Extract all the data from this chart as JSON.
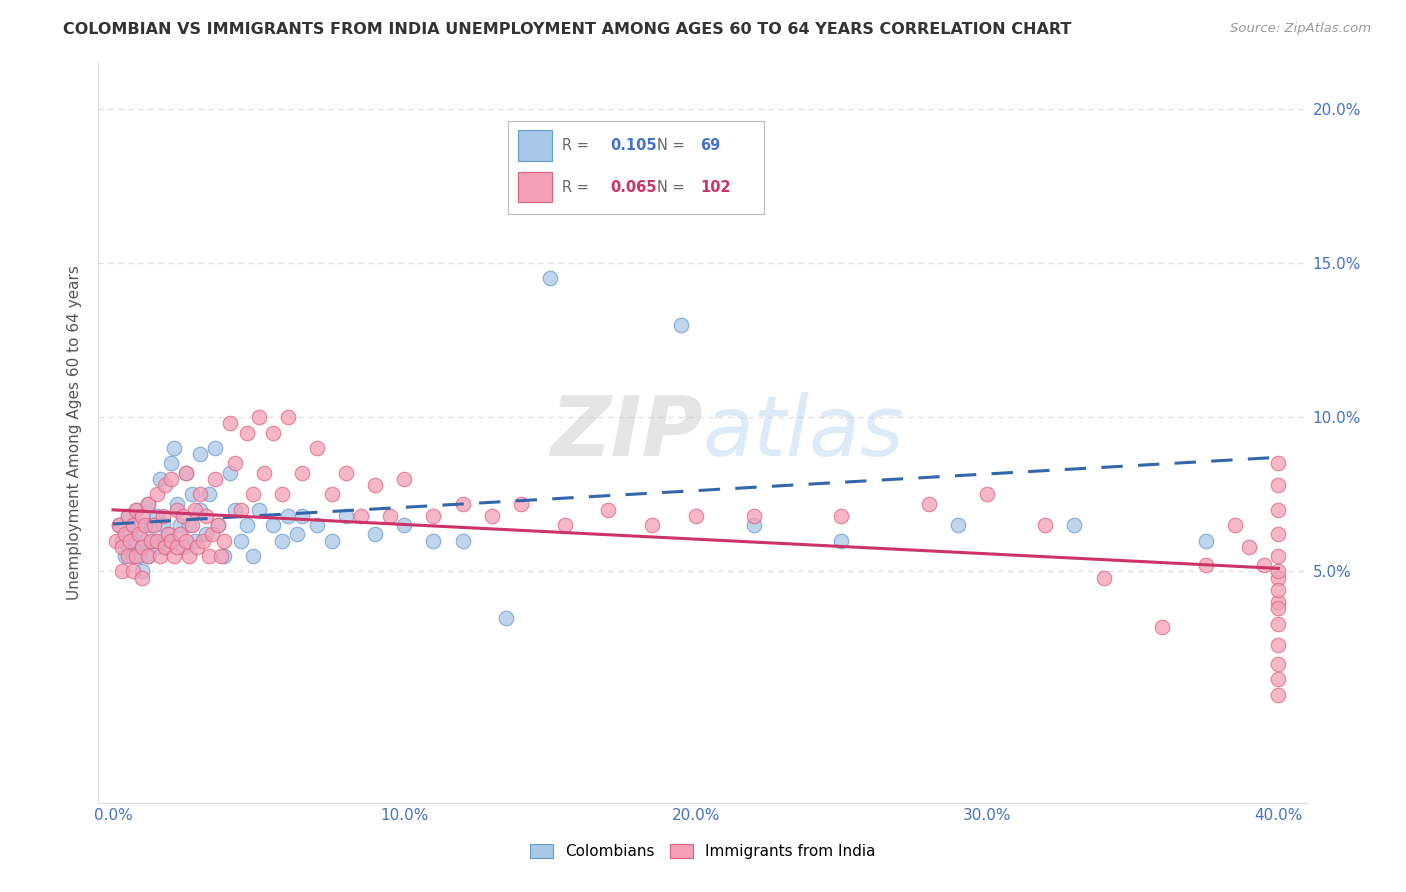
{
  "title": "COLOMBIAN VS IMMIGRANTS FROM INDIA UNEMPLOYMENT AMONG AGES 60 TO 64 YEARS CORRELATION CHART",
  "source": "Source: ZipAtlas.com",
  "ylabel": "Unemployment Among Ages 60 to 64 years",
  "colombian_color": "#a8c8e8",
  "colombia_edge_color": "#6699cc",
  "india_color": "#f4a0b8",
  "india_edge_color": "#e06080",
  "trend_colombian_color": "#3366aa",
  "trend_india_color": "#cc3366",
  "legend_R_colombian": "0.105",
  "legend_N_colombian": "69",
  "legend_R_india": "0.065",
  "legend_N_india": "102",
  "watermark": "ZIPatlas",
  "x_min": 0.0,
  "x_max": 0.4,
  "y_min": -0.025,
  "y_max": 0.215,
  "yticks": [
    0.05,
    0.1,
    0.15,
    0.2
  ],
  "ytick_labels": [
    "5.0%",
    "10.0%",
    "15.0%",
    "20.0%"
  ],
  "xticks": [
    0.0,
    0.1,
    0.2,
    0.3,
    0.4
  ],
  "xtick_labels": [
    "0.0%",
    "10.0%",
    "20.0%",
    "30.0%",
    "40.0%"
  ],
  "axis_color": "#4472c4",
  "grid_color": "#dddddd",
  "title_color": "#333333",
  "source_color": "#999999",
  "ylabel_color": "#555555"
}
